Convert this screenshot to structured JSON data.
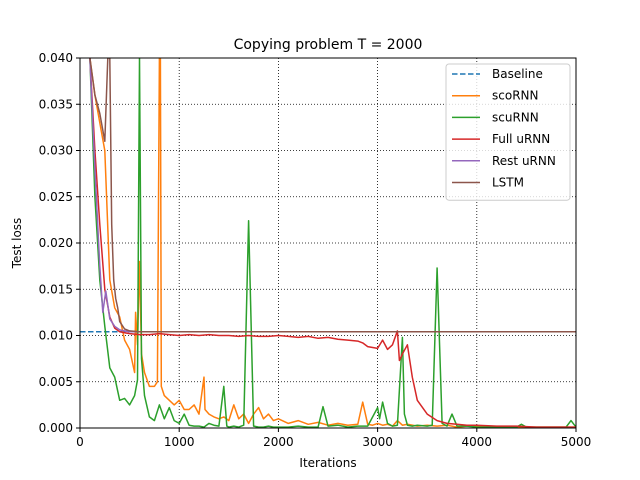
{
  "chart_data": {
    "type": "line",
    "title": "Copying problem T = 2000",
    "xlabel": "Iterations",
    "ylabel": "Test loss",
    "xlim": [
      0,
      5000
    ],
    "ylim": [
      0,
      0.04
    ],
    "xticks": [
      "0",
      "1000",
      "2000",
      "3000",
      "4000",
      "5000"
    ],
    "yticks": [
      "0.000",
      "0.005",
      "0.010",
      "0.015",
      "0.020",
      "0.025",
      "0.030",
      "0.035",
      "0.040"
    ],
    "grid": true,
    "legend_position": "top-right",
    "series": [
      {
        "name": "Baseline",
        "color": "#1f77b4",
        "dashed": true,
        "x": [
          0,
          5000
        ],
        "y": [
          0.0104,
          0.0104
        ]
      },
      {
        "name": "scoRNN",
        "color": "#ff7f0e",
        "x": [
          100,
          150,
          200,
          250,
          300,
          350,
          400,
          450,
          500,
          550,
          560,
          580,
          600,
          620,
          650,
          700,
          750,
          780,
          800,
          810,
          820,
          850,
          900,
          950,
          1000,
          1050,
          1100,
          1150,
          1200,
          1250,
          1260,
          1300,
          1350,
          1400,
          1450,
          1500,
          1550,
          1600,
          1650,
          1700,
          1750,
          1800,
          1850,
          1900,
          1950,
          2000,
          2100,
          2200,
          2300,
          2400,
          2500,
          2600,
          2700,
          2800,
          2850,
          2900,
          2950,
          3000,
          3050,
          3100,
          3150,
          3200,
          3250,
          3300,
          3400,
          3500,
          3600,
          3700,
          3800,
          3900,
          4000,
          4200,
          4400,
          4600,
          4800,
          4900,
          5000
        ],
        "y": [
          0.04,
          0.036,
          0.033,
          0.03,
          0.016,
          0.013,
          0.012,
          0.0095,
          0.0085,
          0.006,
          0.0125,
          0.009,
          0.018,
          0.008,
          0.006,
          0.0045,
          0.0045,
          0.005,
          0.04,
          0.04,
          0.0045,
          0.0035,
          0.003,
          0.0025,
          0.003,
          0.002,
          0.002,
          0.0025,
          0.0015,
          0.0055,
          0.002,
          0.0015,
          0.0012,
          0.001,
          0.0012,
          0.0008,
          0.0025,
          0.001,
          0.0015,
          0.0005,
          0.0015,
          0.0022,
          0.001,
          0.0015,
          0.0008,
          0.001,
          0.0005,
          0.0008,
          0.0004,
          0.0006,
          0.0003,
          0.0005,
          0.0003,
          0.0004,
          0.0028,
          0.0004,
          0.0003,
          0.0005,
          0.0003,
          0.0004,
          0.0002,
          0.0008,
          0.0003,
          0.0004,
          0.0002,
          0.0003,
          0.0002,
          0.0003,
          0.0001,
          0.0002,
          0.0002,
          0.0001,
          0.0001,
          0.0001,
          0.0001,
          0.0001,
          0.0001
        ]
      },
      {
        "name": "scuRNN",
        "color": "#2ca02c",
        "x": [
          100,
          150,
          200,
          250,
          300,
          350,
          400,
          450,
          500,
          550,
          580,
          600,
          620,
          650,
          700,
          750,
          800,
          850,
          900,
          950,
          1000,
          1050,
          1100,
          1150,
          1200,
          1250,
          1300,
          1350,
          1400,
          1450,
          1480,
          1500,
          1550,
          1600,
          1650,
          1700,
          1750,
          1800,
          1850,
          1900,
          1950,
          2000,
          2100,
          2200,
          2300,
          2400,
          2450,
          2500,
          2600,
          2700,
          2800,
          2900,
          3000,
          3020,
          3050,
          3100,
          3150,
          3200,
          3250,
          3270,
          3300,
          3350,
          3400,
          3500,
          3550,
          3600,
          3650,
          3700,
          3750,
          3800,
          3900,
          4000,
          4200,
          4400,
          4450,
          4500,
          4700,
          4900,
          4950,
          5000
        ],
        "y": [
          0.04,
          0.025,
          0.016,
          0.011,
          0.0065,
          0.0055,
          0.003,
          0.0032,
          0.0025,
          0.0035,
          0.0052,
          0.04,
          0.0075,
          0.0035,
          0.0012,
          0.0008,
          0.0025,
          0.001,
          0.0022,
          0.0008,
          0.0005,
          0.0015,
          0.0003,
          0.0002,
          0.0002,
          0.0001,
          0.0005,
          0.0003,
          0.0002,
          0.0045,
          0.0002,
          0.0001,
          0.0002,
          0.0001,
          0.0003,
          0.0224,
          0.0002,
          0.0001,
          0.0001,
          0.0002,
          0.0001,
          0.0001,
          0.0001,
          0.0002,
          0.0001,
          0.0001,
          0.0023,
          0.0002,
          0.0003,
          0.0001,
          0.0002,
          0.0002,
          0.0022,
          0.001,
          0.0028,
          0.0005,
          0.0002,
          0.0003,
          0.0098,
          0.0015,
          0.0003,
          0.0002,
          0.0003,
          0.0002,
          0.0003,
          0.0173,
          0.0005,
          0.0002,
          0.0015,
          0.0002,
          0.0002,
          0.0001,
          0.0001,
          0.0001,
          0.0004,
          0.0001,
          0.0001,
          0.0001,
          0.0008,
          0.0001
        ]
      },
      {
        "name": "Full uRNN",
        "color": "#d62728",
        "x": [
          100,
          150,
          200,
          250,
          300,
          350,
          400,
          450,
          500,
          600,
          700,
          800,
          900,
          1000,
          1100,
          1200,
          1300,
          1400,
          1500,
          1600,
          1700,
          1800,
          1900,
          2000,
          2100,
          2200,
          2300,
          2400,
          2500,
          2600,
          2700,
          2800,
          2850,
          2900,
          2950,
          3000,
          3050,
          3100,
          3150,
          3200,
          3220,
          3250,
          3300,
          3350,
          3400,
          3500,
          3600,
          3700,
          3800,
          3900,
          4000,
          4200,
          4400,
          4600,
          4800,
          5000
        ],
        "y": [
          0.04,
          0.03,
          0.022,
          0.015,
          0.012,
          0.0108,
          0.0104,
          0.0103,
          0.0102,
          0.0101,
          0.0101,
          0.0102,
          0.0101,
          0.01,
          0.0101,
          0.01,
          0.0101,
          0.01,
          0.01,
          0.0099,
          0.01,
          0.0099,
          0.0099,
          0.01,
          0.0099,
          0.0098,
          0.0099,
          0.0097,
          0.0098,
          0.0096,
          0.0095,
          0.0094,
          0.0092,
          0.0088,
          0.0087,
          0.0086,
          0.0095,
          0.0085,
          0.009,
          0.0105,
          0.0073,
          0.008,
          0.009,
          0.0055,
          0.003,
          0.0015,
          0.0008,
          0.0005,
          0.0004,
          0.0003,
          0.0003,
          0.0002,
          0.0002,
          0.0001,
          0.0001,
          0.0001
        ]
      },
      {
        "name": "Rest uRNN",
        "color": "#9467bd",
        "x": [
          100,
          150,
          200,
          230,
          260,
          300,
          350,
          400,
          450,
          500,
          600,
          800,
          1000,
          1500,
          2000,
          2500,
          3000,
          3500,
          4000,
          4500,
          5000
        ],
        "y": [
          0.04,
          0.028,
          0.0175,
          0.0125,
          0.0148,
          0.0118,
          0.011,
          0.0106,
          0.0105,
          0.0104,
          0.0104,
          0.0104,
          0.0104,
          0.0104,
          0.0104,
          0.0104,
          0.0104,
          0.0104,
          0.0104,
          0.0104,
          0.0104
        ]
      },
      {
        "name": "LSTM",
        "color": "#8c564b",
        "x": [
          100,
          150,
          200,
          250,
          280,
          300,
          320,
          340,
          360,
          380,
          400,
          450,
          500,
          600,
          800,
          1000,
          1500,
          2000,
          2500,
          3000,
          3500,
          4000,
          4500,
          5000
        ],
        "y": [
          0.04,
          0.036,
          0.034,
          0.031,
          0.04,
          0.04,
          0.022,
          0.016,
          0.014,
          0.013,
          0.0115,
          0.0107,
          0.0105,
          0.0104,
          0.0104,
          0.0104,
          0.0104,
          0.0104,
          0.0104,
          0.0104,
          0.0104,
          0.0104,
          0.0104,
          0.0104
        ]
      }
    ]
  }
}
